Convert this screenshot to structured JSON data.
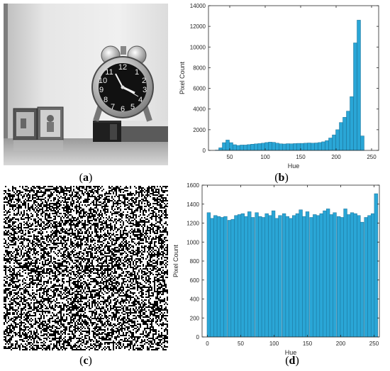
{
  "captions": {
    "a": "a",
    "b": "b",
    "c": "c",
    "d": "d"
  },
  "colors": {
    "bar": "#2aa6d6",
    "bar_edge": "#1b6f94",
    "axis": "#262626"
  },
  "images": {
    "a": "grayscale photo: alarm clock on book with picture frames",
    "c": "random noise image"
  },
  "chart_data": [
    {
      "type": "bar",
      "title": "",
      "xlabel": "Hue",
      "ylabel": "Pixel Count",
      "xlim": [
        20,
        260
      ],
      "ylim": [
        0,
        14000
      ],
      "xticks": [
        50,
        100,
        150,
        200,
        250
      ],
      "yticks": [
        0,
        2000,
        4000,
        6000,
        8000,
        10000,
        12000,
        14000
      ],
      "bin_width": 5,
      "x": [
        32,
        37,
        42,
        47,
        52,
        57,
        62,
        67,
        72,
        77,
        82,
        87,
        92,
        97,
        102,
        107,
        112,
        117,
        122,
        127,
        132,
        137,
        142,
        147,
        152,
        157,
        162,
        167,
        172,
        177,
        182,
        187,
        192,
        197,
        202,
        207,
        212,
        217,
        222,
        227,
        232,
        237
      ],
      "values": [
        30,
        250,
        750,
        1000,
        750,
        550,
        480,
        520,
        520,
        560,
        600,
        630,
        660,
        700,
        760,
        800,
        780,
        700,
        640,
        620,
        650,
        640,
        660,
        680,
        680,
        700,
        720,
        700,
        720,
        760,
        830,
        950,
        1200,
        1500,
        2000,
        2700,
        3200,
        3800,
        5200,
        10400,
        12600,
        1400
      ]
    },
    {
      "type": "bar",
      "title": "",
      "xlabel": "Hue",
      "ylabel": "Pixel Count",
      "xlim": [
        -8,
        258
      ],
      "ylim": [
        0,
        1600
      ],
      "xticks": [
        0,
        50,
        100,
        150,
        200,
        250
      ],
      "yticks": [
        0,
        200,
        400,
        600,
        800,
        1000,
        1200,
        1400,
        1600
      ],
      "bin_width": 5.12,
      "x": [
        2,
        7,
        12,
        17,
        22,
        27,
        33,
        38,
        43,
        48,
        53,
        58,
        63,
        68,
        74,
        79,
        84,
        89,
        94,
        99,
        104,
        109,
        115,
        120,
        125,
        130,
        135,
        140,
        145,
        150,
        156,
        161,
        166,
        171,
        176,
        181,
        186,
        191,
        197,
        202,
        207,
        212,
        217,
        222,
        227,
        232,
        238,
        243,
        248,
        253
      ],
      "values": [
        1310,
        1250,
        1280,
        1270,
        1260,
        1270,
        1230,
        1240,
        1280,
        1290,
        1300,
        1270,
        1320,
        1260,
        1310,
        1270,
        1260,
        1300,
        1280,
        1330,
        1250,
        1280,
        1300,
        1270,
        1250,
        1280,
        1300,
        1340,
        1270,
        1320,
        1260,
        1290,
        1280,
        1300,
        1330,
        1350,
        1290,
        1310,
        1270,
        1260,
        1350,
        1290,
        1310,
        1300,
        1280,
        1210,
        1260,
        1280,
        1300,
        1510
      ]
    }
  ]
}
